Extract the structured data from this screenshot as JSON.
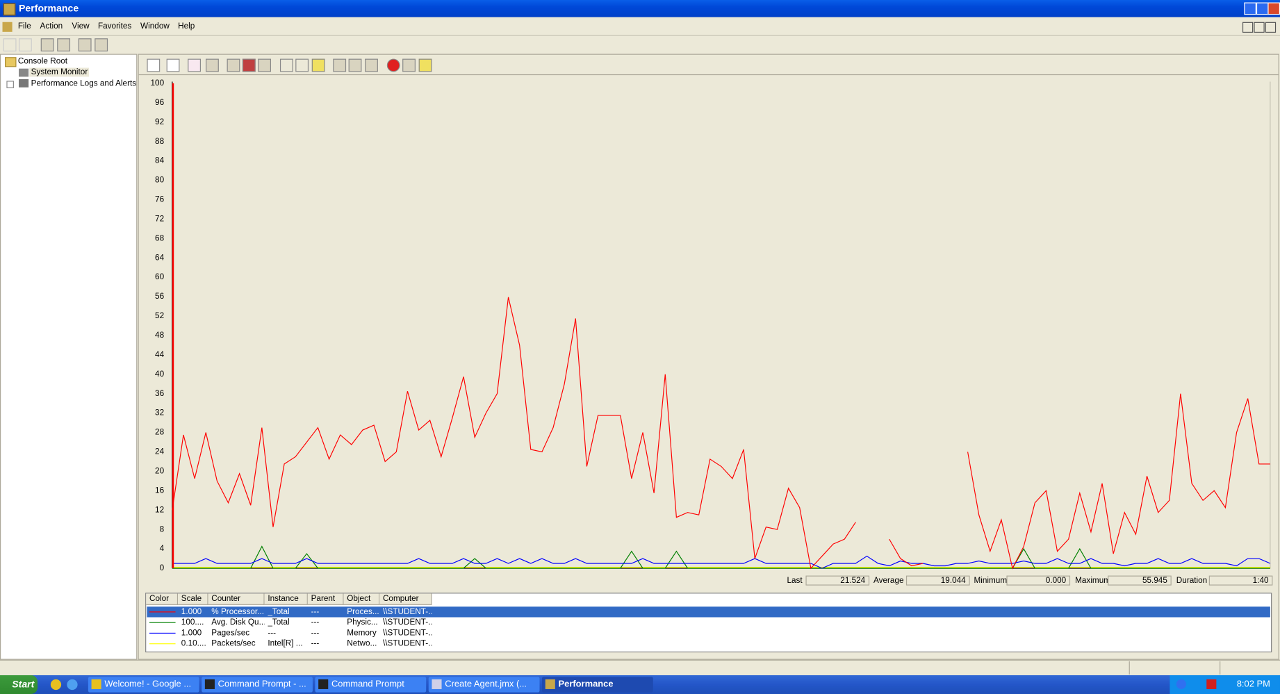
{
  "window_title": "Performance",
  "menu": [
    "File",
    "Action",
    "View",
    "Favorites",
    "Window",
    "Help"
  ],
  "tree": [
    "Console Root",
    "System Monitor",
    "Performance Logs and Alerts"
  ],
  "chart_data": {
    "type": "line",
    "ylim": [
      0,
      100
    ],
    "yticks": [
      0,
      4,
      8,
      12,
      16,
      20,
      24,
      28,
      32,
      36,
      40,
      44,
      48,
      52,
      56,
      60,
      64,
      68,
      72,
      76,
      80,
      84,
      88,
      92,
      96,
      100
    ],
    "grid": false,
    "series": [
      {
        "name": "% Processor...",
        "color": "#ff0000",
        "values": [
          12,
          27.5,
          18.5,
          28,
          18,
          13.5,
          19.5,
          13,
          29,
          8.5,
          21.5,
          23,
          26,
          29,
          22.5,
          27.5,
          25.5,
          28.5,
          29.5,
          22,
          24,
          36.5,
          28.5,
          30.5,
          23,
          31,
          39.5,
          27,
          32,
          36,
          55.9,
          46,
          24.5,
          24,
          29,
          38,
          51.5,
          21,
          31.5,
          31.5,
          31.5,
          18.5,
          28,
          15.5,
          40,
          10.5,
          11.5,
          11,
          22.5,
          21,
          18.5,
          24.5,
          2,
          8.5,
          8,
          16.5,
          12.5,
          0,
          2.5,
          5,
          6,
          9.5,
          null,
          null,
          6,
          2,
          0.5,
          1,
          null,
          null,
          null,
          24,
          11,
          3.5,
          10,
          0,
          4.5,
          13.5,
          16,
          3.5,
          6,
          15.5,
          7.5,
          17.5,
          3,
          11.5,
          7,
          19,
          11.5,
          14,
          36,
          17.5,
          14,
          16,
          12.5,
          28,
          35,
          21.5,
          21.5
        ]
      },
      {
        "name": "Avg. Disk Qu...",
        "color": "#008000",
        "values": [
          0,
          0,
          0,
          0,
          0,
          0,
          0,
          0,
          4.5,
          0,
          0,
          0,
          3,
          0,
          0,
          0,
          0,
          0,
          0,
          0,
          0,
          0,
          0,
          0,
          0,
          0,
          0,
          2,
          0,
          0,
          0,
          0,
          0,
          0,
          0,
          0,
          0,
          0,
          0,
          0,
          0,
          3.5,
          0,
          0,
          0,
          3.5,
          0,
          0,
          0,
          0,
          0,
          0,
          0,
          0,
          0,
          0,
          0,
          0,
          0,
          0,
          0,
          0,
          0,
          0,
          0,
          0,
          0,
          0,
          0,
          0,
          0,
          0,
          0,
          0,
          0,
          0,
          4,
          0,
          0,
          0,
          0,
          4,
          0,
          0,
          0,
          0,
          0,
          0,
          0,
          0,
          0,
          0,
          0,
          0,
          0,
          0,
          0,
          0,
          0
        ]
      },
      {
        "name": "Pages/sec",
        "color": "#0000ff",
        "values": [
          1,
          1,
          1,
          2,
          1,
          1,
          1,
          1,
          2,
          1,
          1,
          1,
          2,
          1,
          1,
          1,
          1,
          1,
          1,
          1,
          1,
          1,
          2,
          1,
          1,
          1,
          2,
          1,
          1,
          2,
          1,
          2,
          1,
          2,
          1,
          1,
          2,
          1,
          1,
          1,
          1,
          1,
          2,
          1,
          1,
          1,
          1,
          1,
          1,
          1,
          1,
          1,
          2,
          1,
          1,
          1,
          1,
          1,
          0,
          1,
          1,
          1,
          2.5,
          1,
          0.5,
          1.5,
          1,
          1,
          0.5,
          0.5,
          1,
          1,
          1.5,
          1,
          1,
          1,
          1.5,
          1,
          1,
          2,
          1,
          1,
          2,
          1,
          1,
          0.5,
          1,
          1,
          2,
          1,
          1,
          2,
          1,
          1,
          1,
          0.5,
          2,
          2,
          1
        ]
      },
      {
        "name": "Packets/sec",
        "color": "#ffff00",
        "values": [
          0.2,
          0.2,
          0.2,
          0.2,
          0.2,
          0.2,
          0.2,
          0.2,
          0.2,
          0.2,
          0.2,
          0.2,
          0.2,
          0.2,
          0.2,
          0.2,
          0.2,
          0.2,
          0.2,
          0.2,
          0.2,
          0.2,
          0.2,
          0.2,
          0.2,
          0.2,
          0.2,
          0.2,
          0.2,
          0.2,
          0.2,
          0.2,
          0.2,
          0.2,
          0.2,
          0.2,
          0.2,
          0.2,
          0.2,
          0.2,
          0.2,
          0.2,
          0.2,
          0.2,
          0.2,
          0.2,
          0.2,
          0.2,
          0.2,
          0.2,
          0.2,
          0.2,
          0.2,
          0.2,
          0.2,
          0.2,
          0.2,
          0.2,
          0.2,
          0.2,
          0.2,
          0.2,
          0.2,
          0.2,
          0.2,
          0.2,
          0.2,
          0.2,
          0.2,
          0.2,
          0.2,
          0.2,
          0.2,
          0.2,
          0.2,
          0.2,
          0.2,
          0.2,
          0.2,
          0.2,
          0.2,
          0.2,
          0.2,
          0.2,
          0.2,
          0.2,
          0.2,
          0.2,
          0.2,
          0.2,
          0.2,
          0.2,
          0.2,
          0.2,
          0.2,
          0.2,
          0.2,
          0.2,
          0.2
        ]
      }
    ]
  },
  "stats": [
    {
      "label": "Last",
      "value": "21.524"
    },
    {
      "label": "Average",
      "value": "19.044"
    },
    {
      "label": "Minimum",
      "value": "0.000"
    },
    {
      "label": "Maximum",
      "value": "55.945"
    },
    {
      "label": "Duration",
      "value": "1:40"
    }
  ],
  "counter_table": {
    "columns": [
      "Color",
      "Scale",
      "Counter",
      "Instance",
      "Parent",
      "Object",
      "Computer"
    ],
    "rows": [
      [
        "1.000",
        "_Total",
        "---",
        "Proces...",
        "\\\\STUDENT-..."
      ],
      [
        "100....",
        "_Total",
        "---",
        "Physic...",
        "\\\\STUDENT-..."
      ],
      [
        "1.000",
        "---",
        "---",
        "Memory",
        "\\\\STUDENT-..."
      ],
      [
        "0.10....",
        "Intel[R] ...",
        "---",
        "Netwo...",
        "\\\\STUDENT-..."
      ]
    ]
  },
  "taskbar": {
    "start": "Start",
    "tasks": [
      "Welcome! - Google ...",
      "Command Prompt - ...",
      "Command Prompt",
      "Create Agent.jmx (...",
      "Performance"
    ],
    "clock": "8:02 PM"
  }
}
